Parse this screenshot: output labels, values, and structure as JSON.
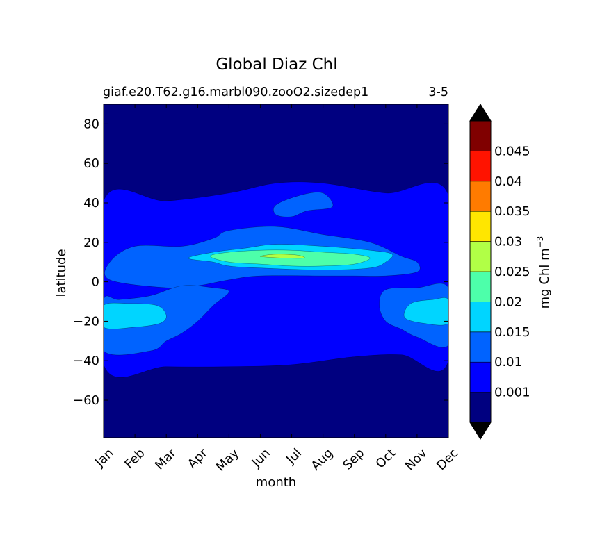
{
  "chart_data": {
    "type": "heatmap",
    "title": "Global Diaz Chl",
    "subtitle_left": "giaf.e20.T62.g16.marbl090.zooO2.sizedep1",
    "subtitle_right": "3-5",
    "xlabel": "month",
    "ylabel": "latitude",
    "x_ticks": [
      "Jan",
      "Feb",
      "Mar",
      "Apr",
      "May",
      "Jun",
      "Jul",
      "Aug",
      "Sep",
      "Oct",
      "Nov",
      "Dec"
    ],
    "y_ticks": [
      "80",
      "60",
      "40",
      "20",
      "0",
      "−20",
      "−40",
      "−60"
    ],
    "y_tick_values": [
      80,
      60,
      40,
      20,
      0,
      -20,
      -40,
      -60
    ],
    "xlim": [
      1,
      12
    ],
    "ylim": [
      -79,
      90
    ],
    "colorbar": {
      "label": "mg Chl m",
      "label_superscript": "−3",
      "levels": [
        0.001,
        0.01,
        0.015,
        0.02,
        0.025,
        0.03,
        0.035,
        0.04,
        0.045
      ],
      "tick_labels": [
        "0.001",
        "0.01",
        "0.015",
        "0.02",
        "0.025",
        "0.03",
        "0.035",
        "0.04",
        "0.045"
      ],
      "colors": [
        "#000080",
        "#0000ff",
        "#0063ff",
        "#00d5ff",
        "#4dffaa",
        "#b1ff46",
        "#ffe600",
        "#ff7b00",
        "#ff1300",
        "#800000"
      ],
      "extend_colors": {
        "under": "#000000",
        "over": "#000000"
      }
    },
    "regions": [
      {
        "level_index": 1,
        "label": "0.001–0.01",
        "outline": [
          [
            1,
            -42
          ],
          [
            3,
            -43
          ],
          [
            5,
            -43
          ],
          [
            7,
            -42
          ],
          [
            9,
            -38
          ],
          [
            10.5,
            -37
          ],
          [
            12,
            -40
          ],
          [
            12,
            44
          ],
          [
            10,
            45
          ],
          [
            8,
            50
          ],
          [
            6.5,
            50
          ],
          [
            5,
            45
          ],
          [
            3,
            41
          ],
          [
            1,
            41
          ]
        ]
      },
      {
        "level_index": 2,
        "label": "0.01–0.015 north",
        "outline": [
          [
            1.2,
            1
          ],
          [
            3,
            -3
          ],
          [
            4,
            -2
          ],
          [
            5,
            1
          ],
          [
            6,
            3
          ],
          [
            8,
            3
          ],
          [
            9,
            3
          ],
          [
            10,
            3
          ],
          [
            11,
            5
          ],
          [
            11,
            10
          ],
          [
            10.5,
            13
          ],
          [
            9.5,
            20
          ],
          [
            8,
            24
          ],
          [
            6.5,
            28
          ],
          [
            5,
            26
          ],
          [
            4.5,
            22
          ],
          [
            3.5,
            18
          ],
          [
            2,
            18
          ],
          [
            1.2,
            10
          ]
        ]
      },
      {
        "level_index": 2,
        "label": "0.01–0.015 north patch",
        "outline": [
          [
            6.5,
            39
          ],
          [
            7.3,
            44
          ],
          [
            8,
            45
          ],
          [
            8.3,
            38
          ],
          [
            7.5,
            36
          ],
          [
            7,
            33
          ],
          [
            6.5,
            34
          ]
        ]
      },
      {
        "level_index": 2,
        "label": "0.01–0.015 south west",
        "outline": [
          [
            1,
            -35
          ],
          [
            2.5,
            -35
          ],
          [
            3,
            -30
          ],
          [
            3.5,
            -26
          ],
          [
            4,
            -20
          ],
          [
            4.5,
            -12
          ],
          [
            5,
            -5
          ],
          [
            4.5,
            -3
          ],
          [
            3.5,
            -2
          ],
          [
            2.5,
            -7
          ],
          [
            1.5,
            -9
          ],
          [
            1,
            -9
          ]
        ]
      },
      {
        "level_index": 2,
        "label": "0.01–0.015 south east",
        "outline": [
          [
            12,
            -32
          ],
          [
            11,
            -28
          ],
          [
            10.5,
            -24
          ],
          [
            10,
            -20
          ],
          [
            9.8,
            -12
          ],
          [
            10,
            -4
          ],
          [
            11,
            -3
          ],
          [
            12,
            -3
          ]
        ]
      },
      {
        "level_index": 3,
        "label": "0.015–0.02 north",
        "outline": [
          [
            3.7,
            12
          ],
          [
            4.5,
            15
          ],
          [
            5.5,
            17
          ],
          [
            6.5,
            19
          ],
          [
            8,
            18
          ],
          [
            9.5,
            16
          ],
          [
            10.2,
            14
          ],
          [
            10,
            10
          ],
          [
            9.5,
            7
          ],
          [
            8,
            6
          ],
          [
            6,
            7
          ],
          [
            5,
            8
          ],
          [
            4.5,
            10
          ]
        ]
      },
      {
        "level_index": 3,
        "label": "0.015–0.02 south west",
        "outline": [
          [
            1,
            -23
          ],
          [
            2,
            -23
          ],
          [
            2.8,
            -21
          ],
          [
            3,
            -17
          ],
          [
            2.7,
            -12
          ],
          [
            1.8,
            -11
          ],
          [
            1,
            -12
          ]
        ]
      },
      {
        "level_index": 3,
        "label": "0.015–0.02 south east",
        "outline": [
          [
            12,
            -21
          ],
          [
            11.2,
            -21
          ],
          [
            10.6,
            -18
          ],
          [
            10.8,
            -11
          ],
          [
            11.5,
            -9
          ],
          [
            12,
            -9
          ]
        ]
      },
      {
        "level_index": 4,
        "label": "0.02–0.025 north",
        "outline": [
          [
            4.4,
            13
          ],
          [
            5,
            15
          ],
          [
            6,
            16
          ],
          [
            7,
            16
          ],
          [
            8,
            15
          ],
          [
            9,
            14
          ],
          [
            9.5,
            12
          ],
          [
            9,
            9
          ],
          [
            8,
            8
          ],
          [
            7,
            8
          ],
          [
            6,
            9
          ],
          [
            5,
            10
          ]
        ]
      },
      {
        "level_index": 5,
        "label": "0.025–0.03",
        "outline": [
          [
            6,
            13
          ],
          [
            6.5,
            14
          ],
          [
            7.2,
            13.5
          ],
          [
            7.4,
            12
          ],
          [
            6.8,
            12
          ],
          [
            6.2,
            12.5
          ]
        ]
      }
    ]
  }
}
